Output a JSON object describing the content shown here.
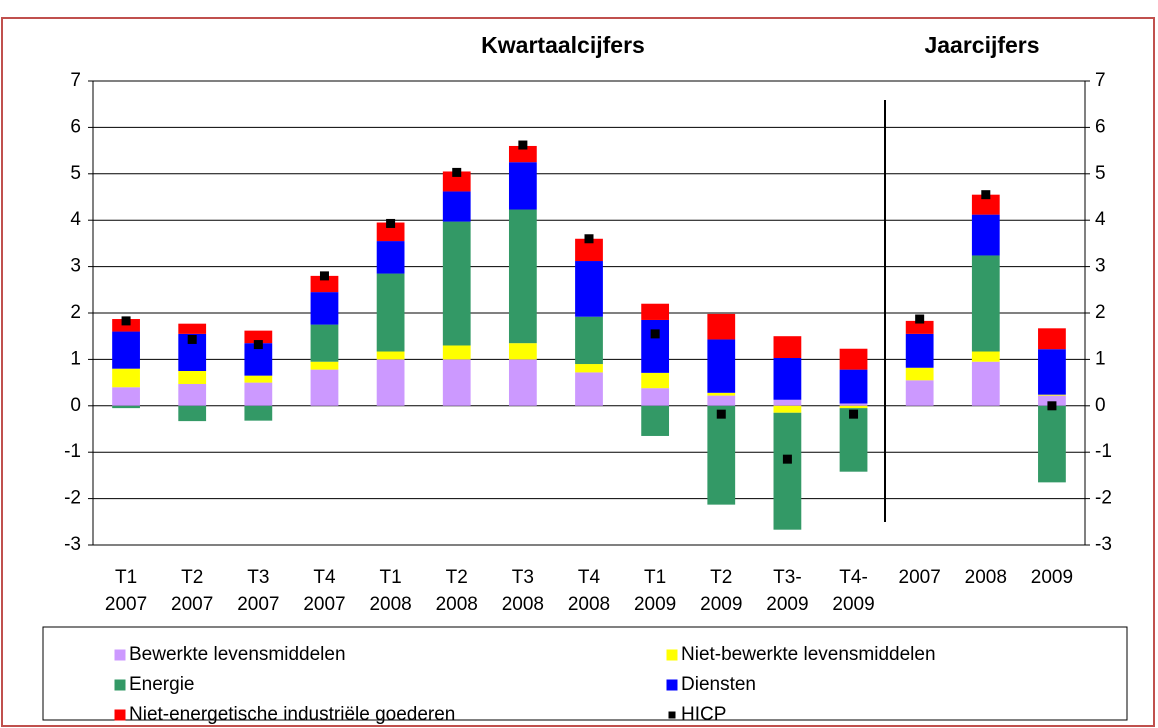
{
  "chart_data": {
    "type": "stacked_bar",
    "annotations": [
      "Kwartaalcijfers",
      "Jaarcijfers"
    ],
    "categories": [
      "T1 2007",
      "T2 2007",
      "T3 2007",
      "T4 2007",
      "T1 2008",
      "T2 2008",
      "T3 2008",
      "T4 2008",
      "T1 2009",
      "T2 2009",
      "T3- 2009",
      "T4- 2009",
      "2007",
      "2008",
      "2009"
    ],
    "series": [
      {
        "name": "Bewerkte levensmiddelen",
        "color": "#cc99ff",
        "values": [
          0.4,
          0.47,
          0.5,
          0.78,
          1.0,
          1.0,
          1.0,
          0.72,
          0.38,
          0.22,
          0.13,
          0.05,
          0.55,
          0.95,
          0.22
        ]
      },
      {
        "name": "Niet-bewerkte levensmiddelen",
        "color": "#ffff00",
        "values": [
          0.4,
          0.28,
          0.15,
          0.17,
          0.17,
          0.3,
          0.35,
          0.18,
          0.33,
          0.06,
          -0.15,
          -0.05,
          0.27,
          0.22,
          0.02
        ]
      },
      {
        "name": "Energie",
        "color": "#339966",
        "values": [
          -0.05,
          -0.33,
          -0.32,
          0.8,
          1.68,
          2.67,
          2.88,
          1.02,
          -0.65,
          -2.13,
          -2.52,
          -1.37,
          0,
          2.07,
          -1.65
        ]
      },
      {
        "name": "Diensten",
        "color": "#0000ff",
        "values": [
          0.8,
          0.8,
          0.7,
          0.7,
          0.7,
          0.65,
          1.02,
          1.2,
          1.14,
          1.15,
          0.9,
          0.73,
          0.73,
          0.88,
          0.98
        ]
      },
      {
        "name": "Niet-energetische industriële goederen",
        "color": "#ff0000",
        "values": [
          0.27,
          0.22,
          0.27,
          0.35,
          0.4,
          0.43,
          0.35,
          0.48,
          0.35,
          0.55,
          0.47,
          0.45,
          0.28,
          0.43,
          0.45
        ]
      }
    ],
    "hicp": {
      "name": "HICP",
      "color": "#000000",
      "values": [
        1.83,
        1.43,
        1.32,
        2.8,
        3.93,
        5.03,
        5.62,
        3.6,
        1.55,
        -0.18,
        -1.15,
        -0.18,
        1.87,
        4.55,
        0
      ]
    },
    "ylim": [
      -3,
      7
    ],
    "yticks": [
      -3,
      -2,
      -1,
      0,
      1,
      2,
      3,
      4,
      5,
      6,
      7
    ],
    "grid": true
  }
}
